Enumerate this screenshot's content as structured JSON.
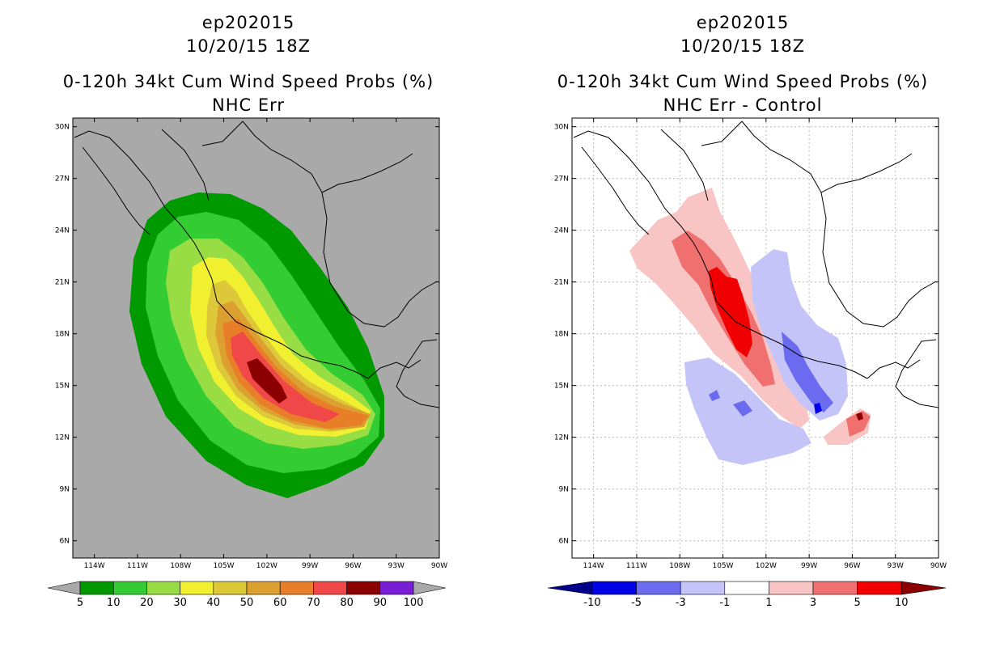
{
  "left": {
    "storm_id": "ep202015",
    "datetime": "10/20/15 18Z",
    "title": "0-120h 34kt Cum Wind Speed Probs (%)",
    "subtitle": "NHC Err",
    "colorbar": {
      "labels": [
        "5",
        "10",
        "20",
        "30",
        "40",
        "50",
        "60",
        "70",
        "80",
        "90",
        "100"
      ],
      "colors": [
        "#009900",
        "#33cc33",
        "#99dd44",
        "#f0f030",
        "#dcc838",
        "#dca030",
        "#e87e28",
        "#f04848",
        "#8b0000",
        "#7a1ed6"
      ],
      "under_color": "#a9a9a9",
      "over_color": "#a9a9a9"
    },
    "background_color": "#a9a9a9"
  },
  "right": {
    "storm_id": "ep202015",
    "datetime": "10/20/15 18Z",
    "title": "0-120h 34kt Cum Wind Speed Probs (%)",
    "subtitle": "NHC Err - Control",
    "colorbar": {
      "labels": [
        "-10",
        "-5",
        "-3",
        "-1",
        "1",
        "3",
        "5",
        "10"
      ],
      "colors": [
        "#0000e6",
        "#6b6bf0",
        "#c4c4f8",
        "#ffffff",
        "#f8c4c4",
        "#f07070",
        "#f00000"
      ],
      "under_color": "#00008b",
      "over_color": "#8b0000"
    },
    "background_color": "#ffffff"
  },
  "map": {
    "lat_labels": [
      "30N",
      "27N",
      "24N",
      "21N",
      "18N",
      "15N",
      "12N",
      "9N",
      "6N"
    ],
    "lon_labels": [
      "114W",
      "111W",
      "108W",
      "105W",
      "102W",
      "99W",
      "96W",
      "93W",
      "90W"
    ],
    "lat_values": [
      30,
      27,
      24,
      21,
      18,
      15,
      12,
      9,
      6
    ],
    "lon_values": [
      -114,
      -111,
      -108,
      -105,
      -102,
      -99,
      -96,
      -93,
      -90
    ],
    "lon_range": [
      -115.5,
      -90
    ],
    "lat_range": [
      5,
      30.5
    ]
  }
}
